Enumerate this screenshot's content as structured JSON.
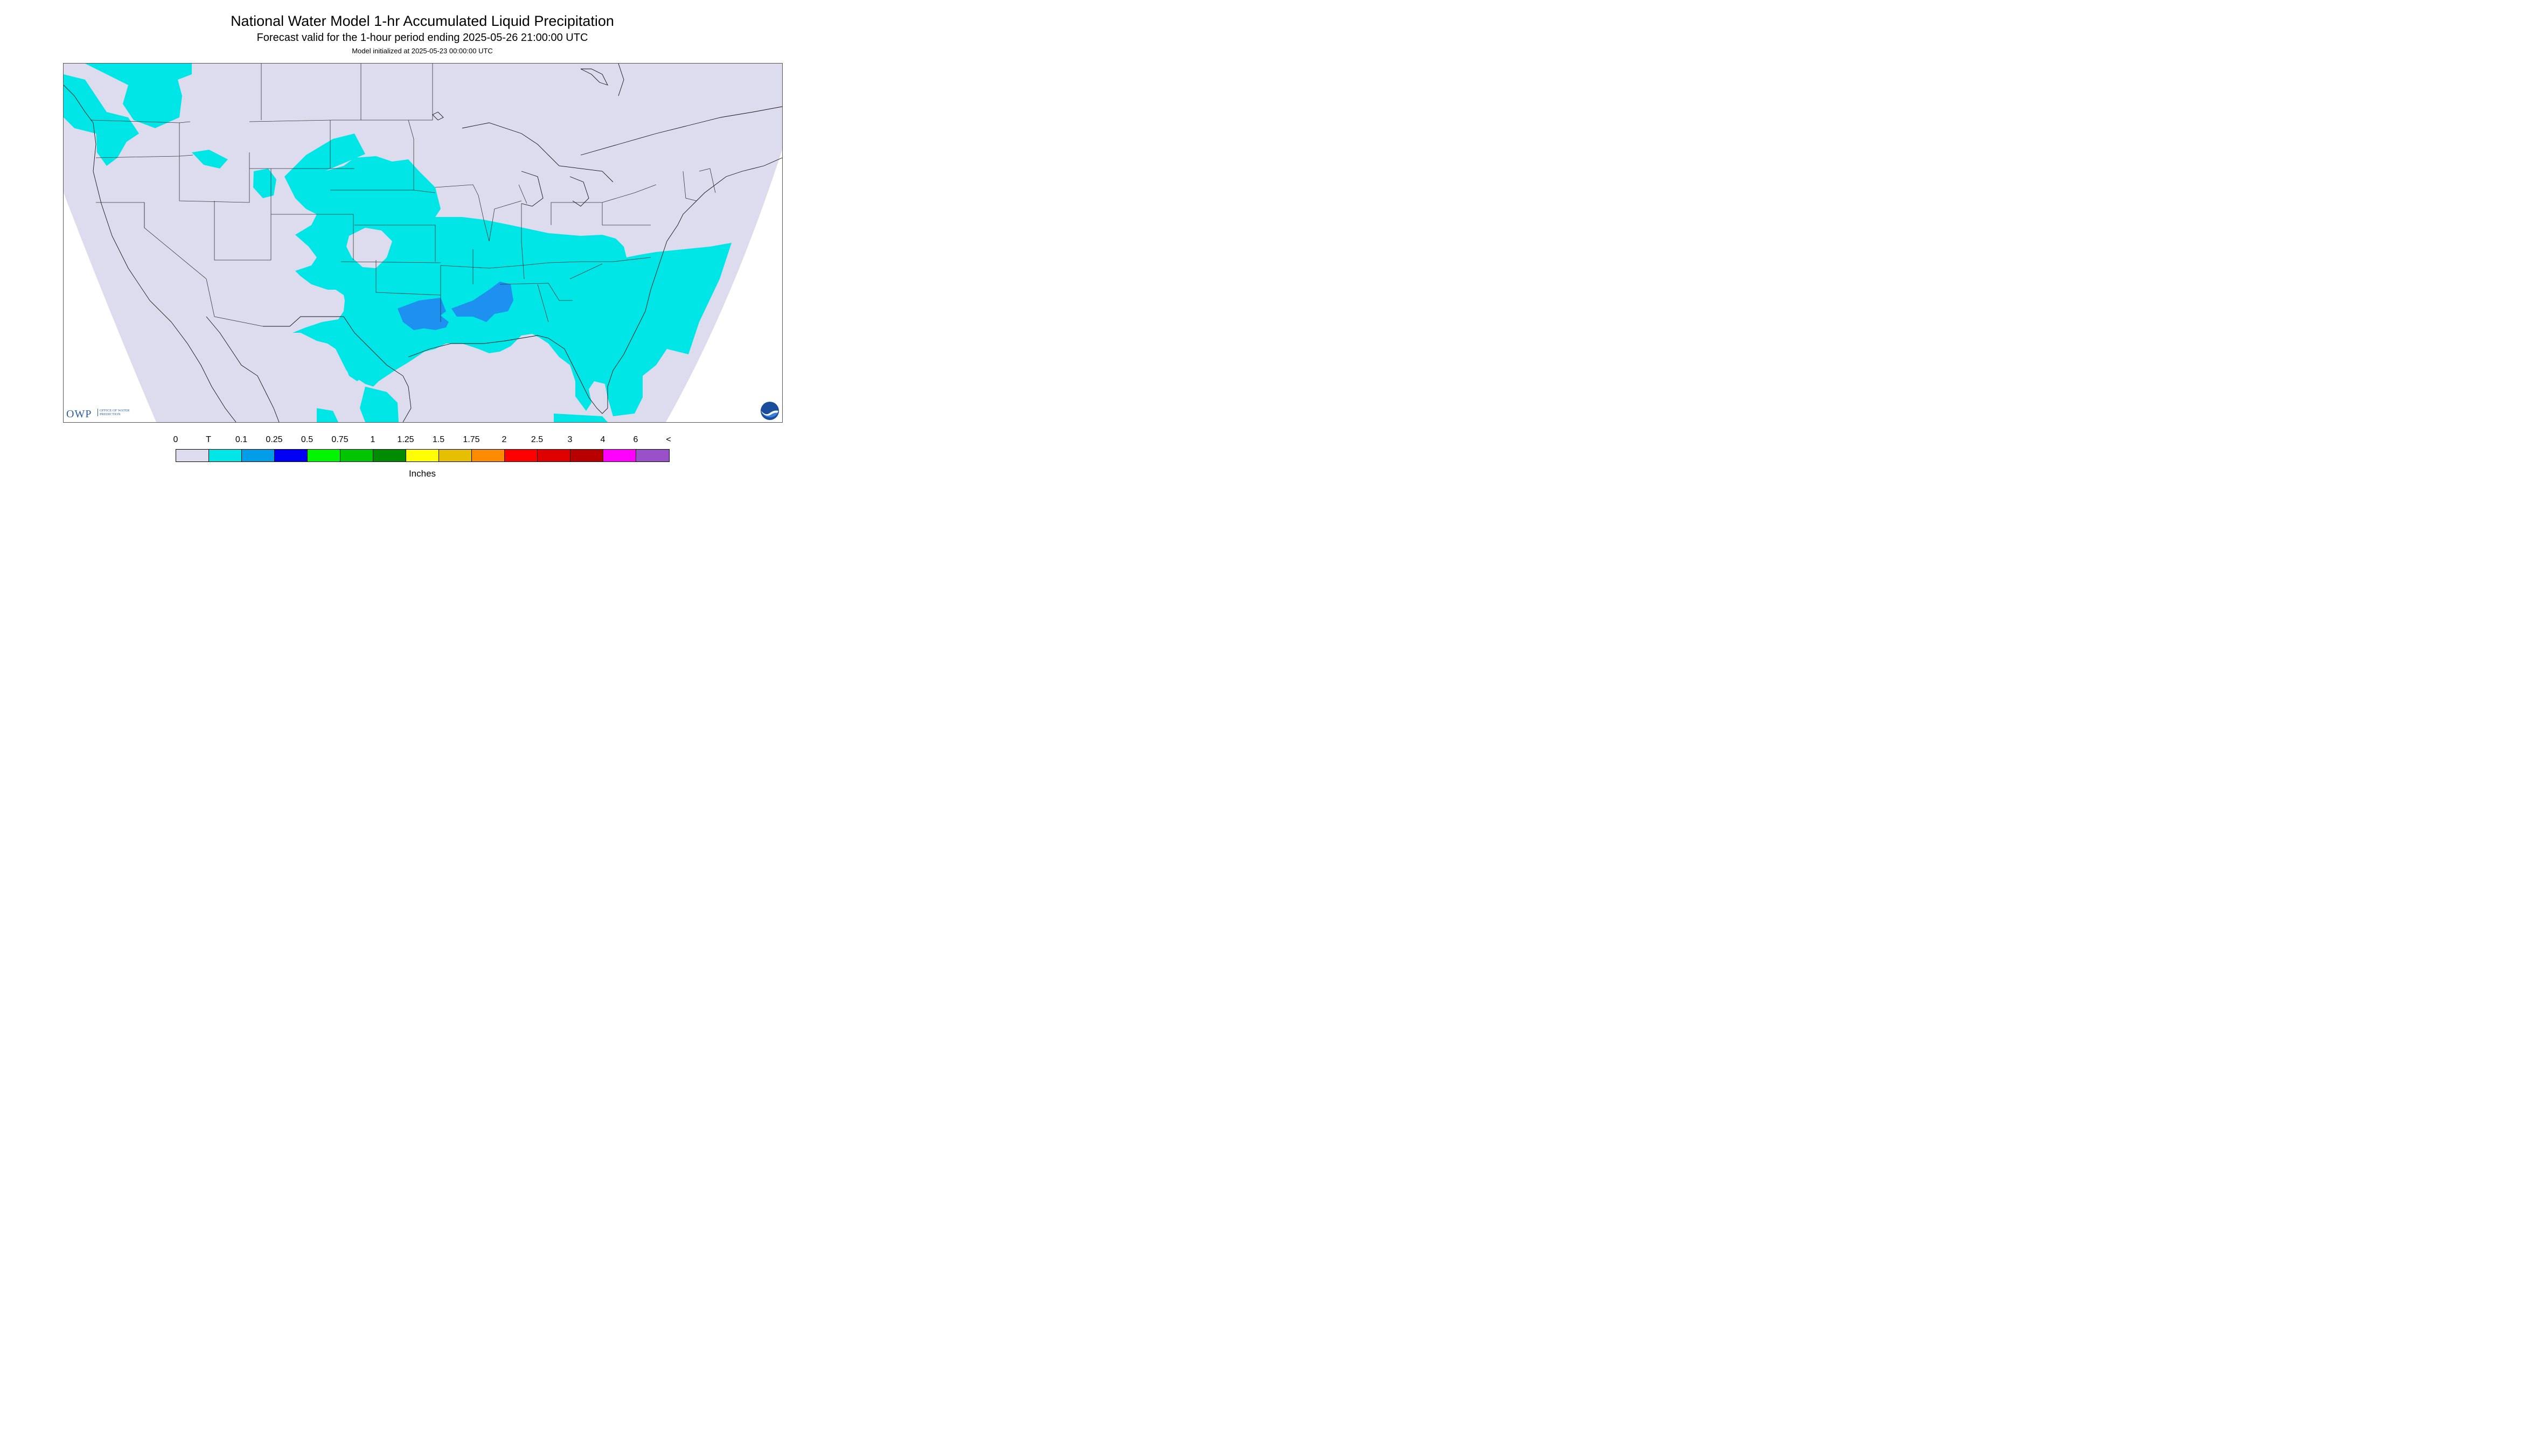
{
  "header": {
    "title": "National Water Model 1-hr Accumulated Liquid Precipitation",
    "subtitle": "Forecast valid for the 1-hour period ending 2025-05-26 21:00:00 UTC",
    "init": "Model initialized at 2025-05-23 00:00:00 UTC"
  },
  "logos": {
    "owp_letters": "OWP",
    "owp_text": "OFFICE OF WATER PREDICTION",
    "noaa_text": "NOAA"
  },
  "legend": {
    "labels": [
      "0",
      "T",
      "0.1",
      "0.25",
      "0.5",
      "0.75",
      "1",
      "1.25",
      "1.5",
      "1.75",
      "2",
      "2.5",
      "3",
      "4",
      "6",
      "<"
    ],
    "colors": [
      "#dcdcee",
      "#00e5e5",
      "#009ee8",
      "#0000f5",
      "#00f500",
      "#00c500",
      "#008c00",
      "#ffff00",
      "#e6bf00",
      "#ff8c00",
      "#ff0000",
      "#e00000",
      "#b80000",
      "#ff00ff",
      "#9a50c8"
    ],
    "unit": "Inches"
  },
  "map_colors": {
    "background": "#dcdcee",
    "trace": "#00e5e5",
    "light": "#1e90f0"
  }
}
